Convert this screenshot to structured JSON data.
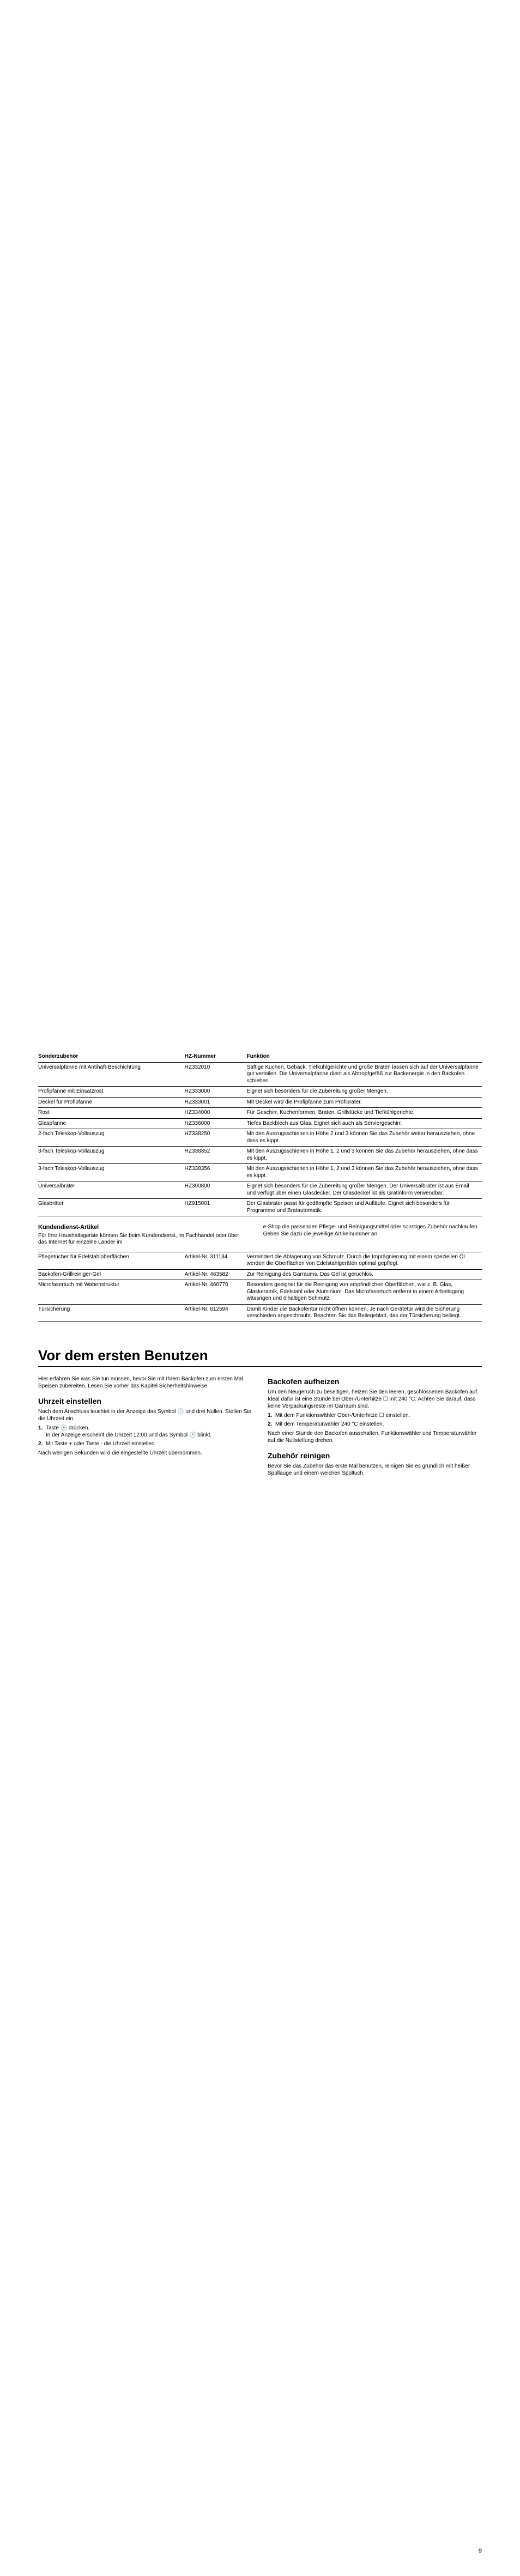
{
  "accessory_table": {
    "headers": [
      "Sonderzubehör",
      "HZ-Nummer",
      "Funktion"
    ],
    "rows": [
      [
        "Universalpfanne mit Antihaft-Beschichtung",
        "HZ332010",
        "Saftige Kuchen, Gebäck, Tiefkühlgerichte und große Braten lassen sich auf der Universalpfanne gut verteilen. Die Universalpfanne dient als Abtropfgefäß zur Backenergie in den Backofen schieben."
      ],
      [
        "Profipfanne mit Einsatzrost",
        "HZ333000",
        "Eignet sich besonders für die Zubereitung großer Mengen."
      ],
      [
        "Deckel für Profipfanne",
        "HZ333001",
        "Mit Deckel wird die Profipfanne zum Profibräter."
      ],
      [
        "Rost",
        "HZ334000",
        "Für Geschirr, Kuchenformen, Braten, Grillstücke und Tiefkühlgerichte."
      ],
      [
        "Glaspfanne",
        "HZ336000",
        "Tiefes Backblech aus Glas. Eignet sich auch als Serviergeschirr."
      ],
      [
        "2-fach Teleskop-Vollauszug",
        "HZ338250",
        "Mit den Auszugsschienen in Höhe 2 und 3 können Sie das Zubehör weiter herausziehen, ohne dass es kippt."
      ],
      [
        "3-fach Teleskop-Vollauszug",
        "HZ338352",
        "Mit den Auszugsschienen in Höhe 1, 2 und 3 können Sie das Zubehör herausziehen, ohne dass es kippt."
      ],
      [
        "3-fach Teleskop-Vollauszug",
        "HZ338356",
        "Mit den Auszugsschienen in Höhe 1, 2 und 3 können Sie das Zubehör herausziehen, ohne dass es kippt."
      ],
      [
        "Universalbräter",
        "HZ390800",
        "Eignet sich besonders für die Zubereitung großer Mengen. Der Universalbräter ist aus Email und verfügt über einen Glasdeckel. Der Glasdeckel ist als Gratinform verwendbar."
      ],
      [
        "Glasbräter",
        "HZ915001",
        "Der Glasbräter passt für gedämpfte Speisen und Aufläufe. Eignet sich besonders für Programme und Bratautomatik."
      ]
    ]
  },
  "kd": {
    "title": "Kundendienst-Artikel",
    "left": "Für Ihre Haushaltsgeräte können Sie beim Kundendienst, im Fachhandel oder über das Internet für einzelne Länder im",
    "right": "e-Shop die passenden Pflege- und Reinigungsmittel oder sonstiges Zubehör nachkaufen. Geben Sie dazu die jeweilige Artikelnummer an."
  },
  "service_table": {
    "rows": [
      [
        "Pflegetücher für Edelstahloberflächen",
        "Artikel-Nr. 311134",
        "Vermindert die Ablagerung von Schmutz. Durch die Imprägnierung mit einem speziellen Öl werden die Oberflächen von Edelstahlgeräten optimal gepflegt."
      ],
      [
        "Backofen-Grillreiniger-Gel",
        "Artikel-Nr. 463582",
        "Zur Reinigung des Garraums. Das Gel ist geruchlos."
      ],
      [
        "Microfasertuch mit Wabenstruktur",
        "Artikel-Nr. 460770",
        "Besonders geeignet für die Reinigung von empfindlichen Oberflächen, wie z. B. Glas, Glaskeramik, Edelstahl oder Aluminium. Das Microfasertuch entfernt in einem Arbeitsgang wässrigen und ölhaltigen Schmutz."
      ],
      [
        "Türsicherung",
        "Artikel-Nr. 612594",
        "Damit Kinder die Backofentür nicht öffnen können. Je nach Gerätetür wird die Sicherung verschieden angeschraubt. Beachten Sie das Beilegeblatt, das der Türsicherung beiliegt."
      ]
    ]
  },
  "main_heading": "Vor dem ersten Benutzen",
  "left_col": {
    "intro": "Hier erfahren Sie was Sie tun müssen, bevor Sie mit Ihrem Backofen zum ersten Mal Speisen zubereiten. Lesen Sie vorher das Kapitel Sicherheitshinweise.",
    "h_clock": "Uhrzeit einstellen",
    "p1a": "Nach dem Anschluss leuchtet in der Anzeige das Symbol ",
    "p1b": " und drei Nullen. Stellen Sie die Uhrzeit ein.",
    "step1a": "Taste ",
    "step1b": " drücken.",
    "step1c": "In der Anzeige erscheint die Uhrzeit 12:00 und das Symbol ",
    "step1d": " blinkt.",
    "step2": "Mit Taste + oder Taste - die Uhrzeit einstellen.",
    "after": "Nach wenigen Sekunden wird die eingestellte Uhrzeit übernommen."
  },
  "right_col": {
    "h_heat": "Backofen aufheizen",
    "p_heat": "Um den Neugeruch zu beseitigen, heizen Sie den leeren, geschlossenen Backofen auf. Ideal dafür ist eine Stunde bei Ober-/Unterhitze ☐ mit 240 °C. Achten Sie darauf, dass keine Verpackungsreste im Garraum sind.",
    "step1": "Mit dem Funktionswähler Ober-/Unterhitze ☐ einstellen.",
    "step2": "Mit dem Temperaturwähler 240 °C einstellen.",
    "after_heat": "Nach einer Stunde den Backofen ausschalten. Funktionswähler und Temperaturwähler auf die Nullstellung drehen.",
    "h_clean": "Zubehör reinigen",
    "p_clean": "Bevor Sie das Zubehör das erste Mal benutzen, reinigen Sie es gründlich mit heißer Spüllauge und einem weichen Spültuch."
  },
  "symbols": {
    "clock": "🕒",
    "box": "☐"
  },
  "page_number": "9"
}
